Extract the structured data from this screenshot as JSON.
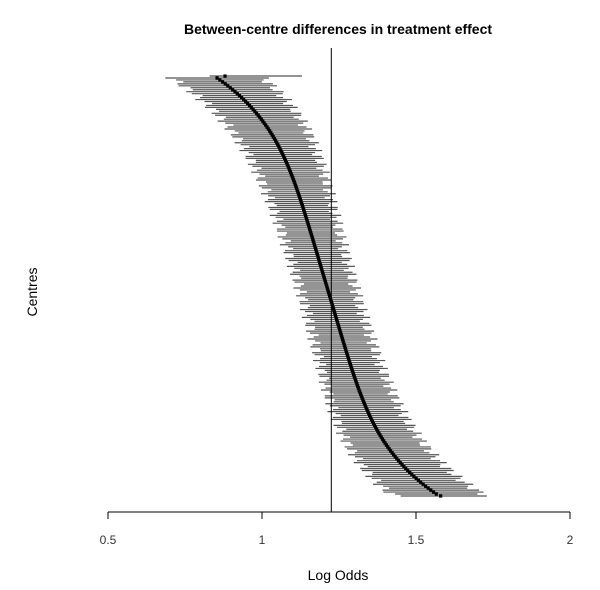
{
  "chart_data": {
    "type": "forest",
    "title": "Between-centre differences in treatment effect",
    "xlabel": "Log Odds",
    "ylabel": "Centres",
    "xlim": [
      0.5,
      2
    ],
    "xticks": [
      0.5,
      1,
      1.5,
      2
    ],
    "xtick_labels": [
      "0.5",
      "1",
      "1.5",
      "2"
    ],
    "reference_line": 1.225,
    "n_centres": 215,
    "centres_sorted_by_estimate": true,
    "point_estimates_range": [
      0.88,
      1.58
    ],
    "interval_half_width_range": [
      0.09,
      0.15
    ],
    "outer_intervals": {
      "first": {
        "estimate": 0.88,
        "lower": 0.83,
        "upper": 1.13
      },
      "last": {
        "estimate": 1.58,
        "lower": 1.45,
        "upper": 1.73
      }
    },
    "grid": false,
    "legend": "none"
  }
}
